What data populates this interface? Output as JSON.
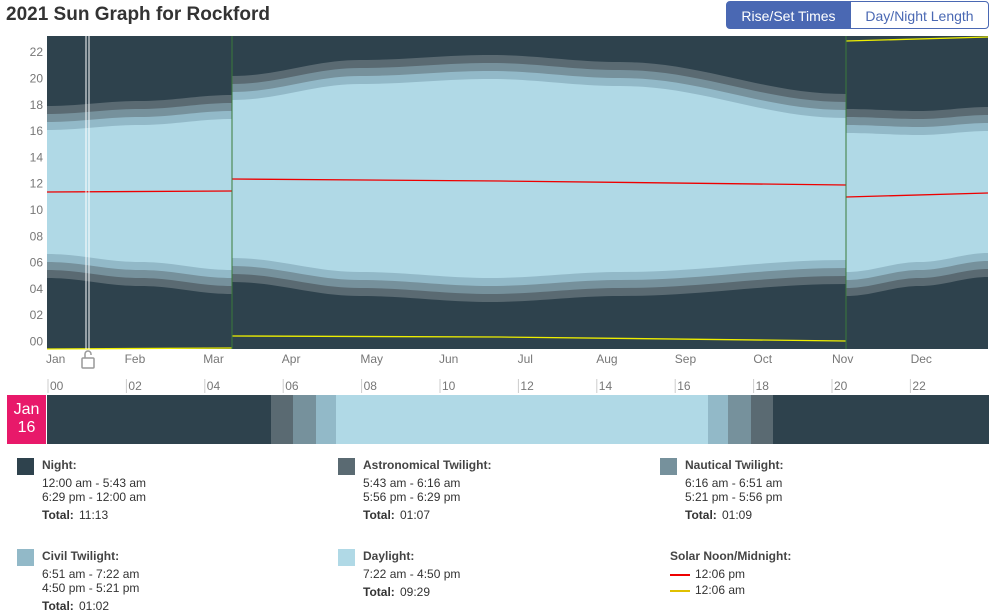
{
  "header": {
    "title": "2021 Sun Graph for Rockford",
    "tabs": [
      "Rise/Set Times",
      "Day/Night Length"
    ]
  },
  "graph": {
    "hour_labels": [
      "22",
      "20",
      "18",
      "16",
      "14",
      "12",
      "10",
      "08",
      "06",
      "04",
      "02",
      "00"
    ],
    "months": [
      "Jan",
      "Feb",
      "Mar",
      "Apr",
      "May",
      "Jun",
      "Jul",
      "Aug",
      "Sep",
      "Oct",
      "Nov",
      "Dec"
    ]
  },
  "day_bar": {
    "hours": [
      "00",
      "02",
      "04",
      "06",
      "08",
      "10",
      "12",
      "14",
      "16",
      "18",
      "20",
      "22"
    ],
    "date": {
      "month": "Jan",
      "day": "16"
    }
  },
  "legend": [
    {
      "name": "Night:",
      "times": [
        "12:00 am - 5:43 am",
        "6:29 pm - 12:00 am"
      ],
      "total_label": "Total:",
      "total": "11:13"
    },
    {
      "name": "Astronomical Twilight:",
      "times": [
        "5:43 am - 6:16 am",
        "5:56 pm - 6:29 pm"
      ],
      "total_label": "Total:",
      "total": "01:07"
    },
    {
      "name": "Nautical Twilight:",
      "times": [
        "6:16 am - 6:51 am",
        "5:21 pm - 5:56 pm"
      ],
      "total_label": "Total:",
      "total": "01:09"
    },
    {
      "name": "Civil Twilight:",
      "times": [
        "6:51 am - 7:22 am",
        "4:50 pm - 5:21 pm"
      ],
      "total_label": "Total:",
      "total": "01:02"
    },
    {
      "name": "Daylight:",
      "times": [
        "7:22 am - 4:50 pm"
      ],
      "total_label": "Total:",
      "total": "09:29"
    }
  ],
  "solar": {
    "title": "Solar Noon/Midnight:",
    "noon": "12:06 pm",
    "midnight": "12:06 am"
  }
}
